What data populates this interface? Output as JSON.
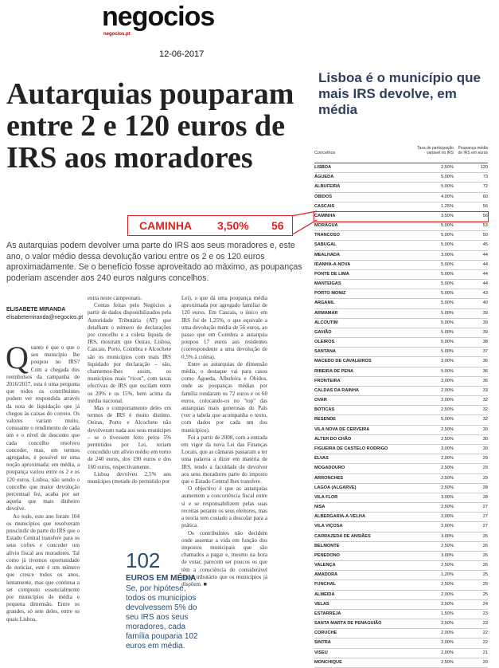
{
  "header": {
    "logo": "negocios",
    "logo_url": "negocios.pt",
    "date": "12-06-2017"
  },
  "article": {
    "headline": "Autarquias pouparam entre 2 e 120 euros de IRS aos moradores",
    "callout": {
      "name": "CAMINHA",
      "rate": "3,50%",
      "value": "56"
    },
    "lead": "As autarquias podem devolver uma parte do IRS aos seus moradores e, este ano, o valor médio dessa devolução variou entre os 2 e os 120 euros aproximadamente. Se o benefício fosse aproveitado ao máximo, as poupanças poderiam ascender aos 240 euros nalguns concelhos.",
    "byline": {
      "author": "ELISABETE MIRANDA",
      "email": "elisabetemiranda@negocios.pt"
    },
    "dropcap": "Q",
    "columns": [
      [
        "uanto é que o que o seu município lhe poupou no IRS? Com a chegada dos reembolsos da campanha de 2016/2017, esta é uma pergunta que todos os contribuintes podem ver respondida através da nota de liquidação que já chegou às caixas do correio. Os valores variam muito, consoante o rendimento de cada um e o nível de desconto que cada concelho resolveu conceder, mas, em termos agregados, é possível ter uma noção aproximada: em média, a poupança variou entre os 2 e os 120 euros. Lisboa, não sendo o concelho que maior devolução percentual fez, acaba por ser aquela que mais dinheiro devolve.",
        "Ao todo, este ano foram 104 os municípios que resolveram prescindir de parte do IRS que o Estado Central transfere para os seus cofres e conceder um alívio fiscal aos moradores. Tal como já tivemos oportunidade de noticiar, este é um número que cresce todos os anos, lentamente, mas que continua a ser composto essencialmente por municípios de média e pequena dimensão. Entre os grandes, só sete deles, entre os quais Lisboa,"
      ],
      [
        "entra neste campeonato.",
        "Contas feitas pelo Negócios a partir de dados disponibilizados pela Autoridade Tributária (AT) que detalham o número de declarações por concelho e a coleta líquida de IRS, mostram que Oeiras, Lisboa, Cascais, Porto, Coimbra e Alcochete são os municípios com mais IRS liquidado por declaração – são, chamemos-lhes assim, os municípios mais \"ricos\", com taxas efectivas de IRS que oscilam entre os 20% e os 15%, bem acima da média nacional.",
        "Mas o comportamento deles em termos de IRS é muito distinto. Oeiras, Porto e Alcochete não devolveram nada aos seus munícipes – se o tivessem feito pelos 5% permitidos por Lei, teriam concedido um alívio médio em torno de 240 euros, dos 190 euros e dos 160 euros, respectivamente.",
        "Lisboa devolveu 2,5% aos munícipes (metade do permitido por"
      ],
      [
        "Lei), o que dá uma poupança média aproximada por agregado familiar de 120 euros. Em Cascais, o único em IRS foi de 1,25%, o que equivale a uma devolução média de 56 euros, ao passo que em Coimbra a autarquia poupou 17 euros aos residentes (correspondente a uma devolução de 0,5% à coleta).",
        "Entre as autarquias de dimensão média, o destaque vai para casos como Águeda, Albufeira e Óbidos, onde as poupanças médias por família rondaram os 72 euros e os 60 euros, colocando-os no \"top\" das autarquias mais generosas do País (ver a tabela que acompanha o texto, com dados por cada um dos municípios).",
        "Foi a partir de 2008, com a entrada em vigor da nova Lei das Finanças Locais, que as câmaras passaram a ter uma palavra a dizer em matéria de IRS, tendo a faculdade de devolver aos seus moradores parte do imposto que o Estado Central lhes transfere.",
        "O objectivo é que as autarquias aumentem a concorrência fiscal entre si e se responsabilizem pelas suas receitas perante os seus eleitores, mas a teoria tem custado a descolar para a prática.",
        "Os contribuintes não decidem onde assentar a vida em função dos impostos municipais que são chamados a pagar e, mesmo na hora de votar, parecem ser poucos os que têm a consciência do considerável poder tributário que os municípios já dispõem. ■"
      ]
    ],
    "highlight": {
      "number": "102",
      "label": "EUROS EM MÉDIA",
      "text": "Se, por hipótese, todos os municípios devolvessem 5% do seu IRS aos seus moradores, cada família pouparia 102 euros em média."
    }
  },
  "sidebar": {
    "title": "Lisboa é o município que mais IRS devolve, em média",
    "table": {
      "columns": [
        "Concelhos",
        "Taxa de participação variável no IRS",
        "Poupança média de IRS em euros"
      ],
      "rows": [
        [
          "LISBOA",
          "2,50%",
          "120"
        ],
        [
          "ÁGUEDA",
          "5,00%",
          "73"
        ],
        [
          "ALBUFEIRA",
          "5,00%",
          "72"
        ],
        [
          "ÓBIDOS",
          "4,00%",
          "60"
        ],
        [
          "CASCAIS",
          "1,25%",
          "56"
        ],
        [
          "CAMINHA",
          "3,50%",
          "56"
        ],
        [
          "MORÁGUA",
          "5,00%",
          "53"
        ],
        [
          "TRANCOSO",
          "5,00%",
          "50"
        ],
        [
          "SABUGAL",
          "5,00%",
          "45"
        ],
        [
          "MEALHADA",
          "3,00%",
          "44"
        ],
        [
          "IDANHA-A-NOVA",
          "5,00%",
          "44"
        ],
        [
          "PONTE DE LIMA",
          "5,00%",
          "44"
        ],
        [
          "MANTEIGAS",
          "5,00%",
          "44"
        ],
        [
          "PORTO MONIZ",
          "5,00%",
          "43"
        ],
        [
          "ARGANIL",
          "5,00%",
          "40"
        ],
        [
          "ARMAMAR",
          "5,00%",
          "39"
        ],
        [
          "ALCOUTIM",
          "5,00%",
          "39"
        ],
        [
          "GAVIÃO",
          "5,00%",
          "39"
        ],
        [
          "OLEIROS",
          "5,00%",
          "38"
        ],
        [
          "SANTANA",
          "5,00%",
          "37"
        ],
        [
          "MACEDO DE CAVALEIROS",
          "3,00%",
          "36"
        ],
        [
          "RIBEIRA DE PENA",
          "5,00%",
          "36"
        ],
        [
          "FRONTEIRA",
          "3,00%",
          "36"
        ],
        [
          "CALDAS DA RAINHA",
          "2,00%",
          "33"
        ],
        [
          "OVAR",
          "2,00%",
          "32"
        ],
        [
          "BOTICAS",
          "2,50%",
          "32"
        ],
        [
          "RESENDE",
          "5,00%",
          "32"
        ],
        [
          "VILA NOVA DE CERVEIRA",
          "2,50%",
          "30"
        ],
        [
          "ALTER DO CHÃO",
          "2,50%",
          "30"
        ],
        [
          "FIGUEIRA DE CASTELO RODRIGO",
          "3,00%",
          "30"
        ],
        [
          "ELVAS",
          "2,00%",
          "29"
        ],
        [
          "MOGADOURO",
          "2,50%",
          "29"
        ],
        [
          "ARRONCHES",
          "2,50%",
          "29"
        ],
        [
          "LAGOA (ALGARVE)",
          "2,50%",
          "28"
        ],
        [
          "VILA FLOR",
          "3,00%",
          "28"
        ],
        [
          "NISA",
          "2,50%",
          "27"
        ],
        [
          "ALBERGARIA-A-VELHA",
          "2,00%",
          "27"
        ],
        [
          "VILA VIÇOSA",
          "2,00%",
          "27"
        ],
        [
          "CARRAZEDA DE ANSIÃES",
          "3,00%",
          "26"
        ],
        [
          "BELMONTE",
          "2,50%",
          "26"
        ],
        [
          "PENEDONO",
          "3,00%",
          "26"
        ],
        [
          "VALENÇA",
          "2,50%",
          "26"
        ],
        [
          "AMADORA",
          "1,20%",
          "25"
        ],
        [
          "FUNCHAL",
          "2,50%",
          "25"
        ],
        [
          "ALMEIDA",
          "2,00%",
          "25"
        ],
        [
          "VELAS",
          "2,50%",
          "24"
        ],
        [
          "ESTARREJA",
          "1,50%",
          "23"
        ],
        [
          "SANTA MARTA DE PENAGUIÃO",
          "2,50%",
          "23"
        ],
        [
          "CORUCHE",
          "2,00%",
          "22"
        ],
        [
          "SINTRA",
          "2,00%",
          "22"
        ],
        [
          "VISEU",
          "2,00%",
          "21"
        ],
        [
          "MONCHIQUE",
          "2,50%",
          "20"
        ]
      ]
    }
  }
}
